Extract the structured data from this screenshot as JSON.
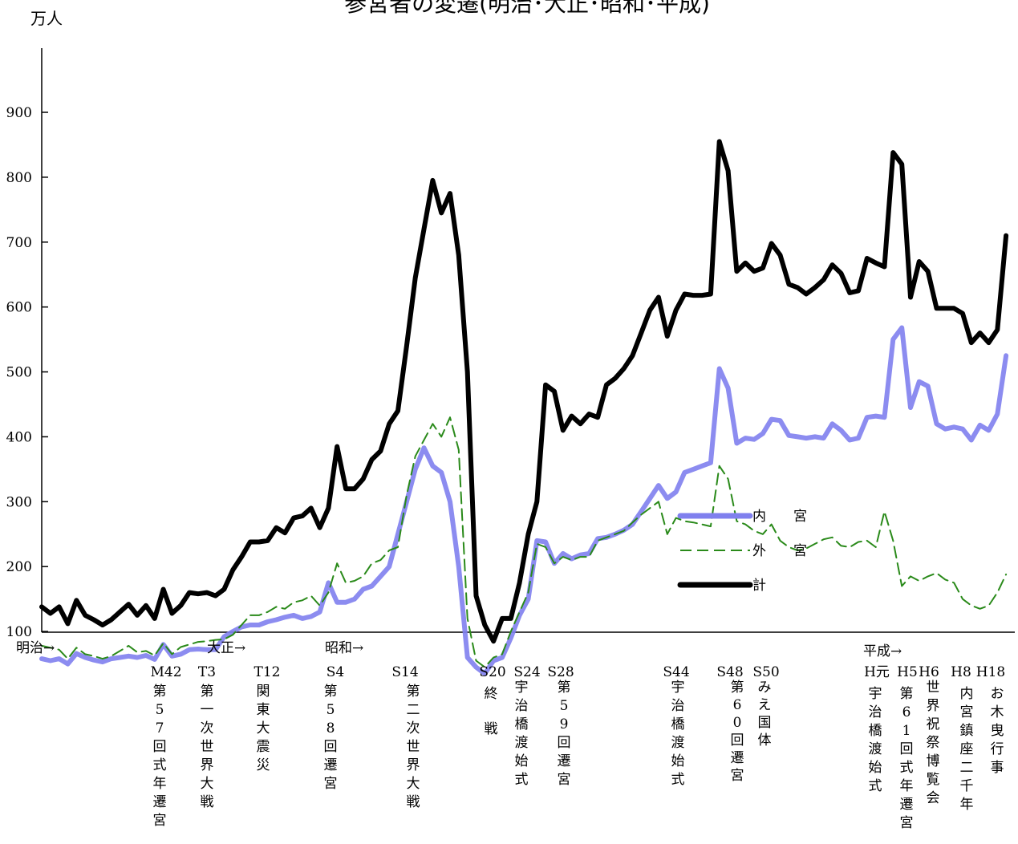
{
  "chart_data": {
    "type": "line",
    "title": "参宮者の変遷(明治･大正･昭和･平成)",
    "ylabel": "万人",
    "ylim": [
      0,
      900
    ],
    "yticks": [
      100,
      200,
      300,
      400,
      500,
      600,
      700,
      800,
      900
    ],
    "grid": false,
    "legend_position": "right-middle",
    "x_start_year": 1899,
    "x": [
      1899,
      1900,
      1901,
      1902,
      1903,
      1904,
      1905,
      1906,
      1907,
      1908,
      1909,
      1910,
      1911,
      1912,
      1913,
      1914,
      1915,
      1916,
      1917,
      1918,
      1919,
      1920,
      1921,
      1922,
      1923,
      1924,
      1925,
      1926,
      1927,
      1928,
      1929,
      1930,
      1931,
      1932,
      1933,
      1934,
      1935,
      1936,
      1937,
      1938,
      1939,
      1940,
      1941,
      1942,
      1943,
      1944,
      1945,
      1946,
      1947,
      1948,
      1949,
      1950,
      1951,
      1952,
      1953,
      1954,
      1955,
      1956,
      1957,
      1958,
      1959,
      1960,
      1961,
      1962,
      1963,
      1964,
      1965,
      1966,
      1967,
      1968,
      1969,
      1970,
      1971,
      1972,
      1973,
      1974,
      1975,
      1976,
      1977,
      1978,
      1979,
      1980,
      1981,
      1982,
      1983,
      1984,
      1985,
      1986,
      1987,
      1988,
      1989,
      1990,
      1991,
      1992,
      1993,
      1994,
      1995,
      1996,
      1997,
      1998,
      1999,
      2000,
      2001,
      2002,
      2003,
      2004,
      2005,
      2006,
      2007,
      2008,
      2009,
      2010
    ],
    "series": [
      {
        "name": "内 宮",
        "color": "#8080ee",
        "style": "thick-light",
        "values": [
          58,
          55,
          58,
          50,
          66,
          60,
          56,
          53,
          58,
          60,
          62,
          60,
          63,
          57,
          80,
          62,
          65,
          72,
          73,
          72,
          72,
          92,
          100,
          107,
          110,
          110,
          115,
          118,
          122,
          125,
          120,
          123,
          130,
          175,
          145,
          145,
          150,
          165,
          170,
          185,
          200,
          250,
          300,
          350,
          383,
          355,
          345,
          300,
          200,
          60,
          45,
          35,
          55,
          60,
          90,
          125,
          150,
          240,
          238,
          205,
          220,
          212,
          218,
          220,
          243,
          245,
          250,
          256,
          265,
          285,
          305,
          325,
          305,
          315,
          345,
          350,
          355,
          360,
          505,
          475,
          390,
          398,
          396,
          405,
          427,
          425,
          402,
          400,
          398,
          400,
          398,
          420,
          410,
          395,
          398,
          430,
          432,
          430,
          550,
          568,
          445,
          485,
          478,
          420,
          412,
          415,
          412,
          395,
          418,
          410,
          435,
          525
        ]
      },
      {
        "name": "外 宮",
        "color": "#2a8a1a",
        "style": "dashed",
        "values": [
          78,
          75,
          72,
          58,
          75,
          65,
          62,
          58,
          62,
          70,
          78,
          68,
          70,
          63,
          82,
          65,
          76,
          80,
          84,
          85,
          87,
          88,
          95,
          110,
          125,
          125,
          130,
          138,
          135,
          145,
          148,
          155,
          140,
          160,
          205,
          175,
          178,
          185,
          205,
          210,
          225,
          230,
          310,
          370,
          395,
          420,
          400,
          430,
          380,
          120,
          55,
          45,
          60,
          65,
          100,
          130,
          160,
          235,
          230,
          205,
          215,
          210,
          215,
          215,
          240,
          245,
          250,
          255,
          268,
          280,
          290,
          300,
          250,
          275,
          270,
          268,
          265,
          262,
          355,
          335,
          270,
          265,
          255,
          250,
          265,
          240,
          230,
          225,
          228,
          235,
          242,
          245,
          232,
          230,
          238,
          240,
          230,
          285,
          240,
          170,
          185,
          178,
          185,
          190,
          180,
          175,
          150,
          140,
          135,
          140,
          160,
          188
        ]
      },
      {
        "name": "計",
        "color": "#000000",
        "style": "thick",
        "values": [
          138,
          128,
          138,
          112,
          148,
          125,
          118,
          110,
          118,
          130,
          142,
          125,
          140,
          120,
          165,
          128,
          140,
          160,
          158,
          160,
          155,
          165,
          195,
          215,
          238,
          238,
          240,
          260,
          252,
          275,
          278,
          290,
          260,
          290,
          385,
          320,
          320,
          335,
          365,
          378,
          420,
          440,
          540,
          645,
          720,
          795,
          745,
          775,
          680,
          500,
          155,
          110,
          85,
          120,
          120,
          175,
          250,
          300,
          480,
          470,
          410,
          432,
          420,
          435,
          430,
          480,
          490,
          505,
          525,
          560,
          595,
          615,
          555,
          595,
          620,
          618,
          618,
          620,
          855,
          810,
          655,
          668,
          655,
          660,
          698,
          680,
          635,
          630,
          620,
          630,
          642,
          665,
          652,
          622,
          625,
          675,
          668,
          662,
          838,
          820,
          615,
          670,
          655,
          598,
          598,
          598,
          590,
          545,
          560,
          545,
          565,
          710
        ]
      }
    ],
    "era_labels": [
      "明治→",
      "大正→",
      "昭和→",
      "平成→"
    ],
    "annotations": [
      {
        "year": 1909,
        "code": "M42",
        "text": "第57回式年遷宮"
      },
      {
        "year": 1914,
        "code": "T3",
        "text": "第一次世界大戦"
      },
      {
        "year": 1923,
        "code": "T12",
        "text": "関東大震災"
      },
      {
        "year": 1929,
        "code": "S4",
        "text": "第58回遷宮"
      },
      {
        "year": 1939,
        "code": "S14",
        "text": "第二次世界大戦"
      },
      {
        "year": 1945,
        "code": "S20",
        "text": "終　戦"
      },
      {
        "year": 1949,
        "code": "S24",
        "text": "宇治橋渡始式"
      },
      {
        "year": 1953,
        "code": "S28",
        "text": "第59回遷宮"
      },
      {
        "year": 1969,
        "code": "S44",
        "text": "宇治橋渡始式"
      },
      {
        "year": 1973,
        "code": "S48",
        "text": "第60回遷宮"
      },
      {
        "year": 1975,
        "code": "S50",
        "text": "みえ国体"
      },
      {
        "year": 1989,
        "code": "H元",
        "text": "宇治橋渡始式"
      },
      {
        "year": 1993,
        "code": "H5",
        "text": "第61回式年遷宮"
      },
      {
        "year": 1994,
        "code": "H6",
        "text": "世界祝祭博覧会"
      },
      {
        "year": 1996,
        "code": "H8",
        "text": "内宮鎮座二千年"
      },
      {
        "year": 2006,
        "code": "H18",
        "text": "お木曳行事"
      }
    ]
  }
}
